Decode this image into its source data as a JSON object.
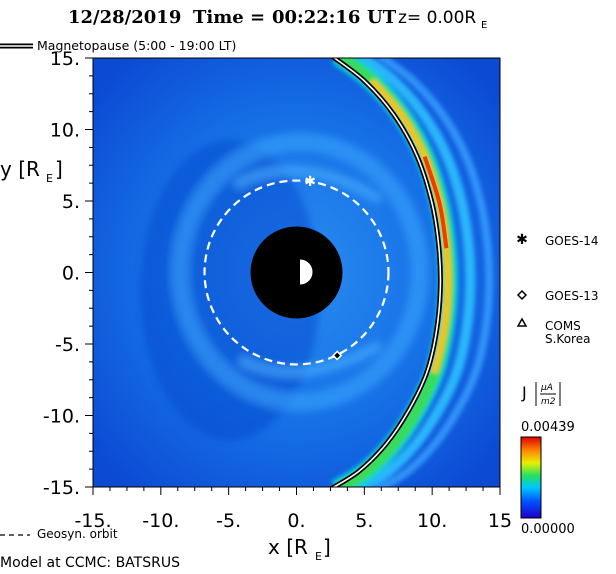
{
  "chart_data": {
    "type": "heatmap",
    "header": {
      "date": "12/28/2019",
      "time_label": "Time =",
      "time_value": "00:22:16",
      "time_unit": "UT",
      "z_label": "z= 0.00R",
      "z_sub": "E"
    },
    "xlabel": "x [R",
    "xlabel_sub": "E",
    "xlabel_close": "]",
    "ylabel": "y [R",
    "ylabel_sub": "E",
    "ylabel_close": "]",
    "xlim": [
      -15,
      15
    ],
    "ylim": [
      -15,
      15
    ],
    "x_ticks": [
      {
        "value": -15,
        "label": "-15."
      },
      {
        "value": -10,
        "label": "-10."
      },
      {
        "value": -5,
        "label": "-5."
      },
      {
        "value": 0,
        "label": "0."
      },
      {
        "value": 5,
        "label": "5."
      },
      {
        "value": 10,
        "label": "10."
      },
      {
        "value": 15,
        "label": "15"
      }
    ],
    "y_ticks": [
      {
        "value": 15,
        "label": "15."
      },
      {
        "value": 10,
        "label": "10."
      },
      {
        "value": 5,
        "label": "5."
      },
      {
        "value": 0,
        "label": "0."
      },
      {
        "value": -5,
        "label": "-5."
      },
      {
        "value": -10,
        "label": "-10."
      },
      {
        "value": -15,
        "label": "-15."
      }
    ],
    "colorbar": {
      "label": "J",
      "unit_num": "μA",
      "unit_den": "m2",
      "max_label": "0.00439",
      "min_label": "0.00000",
      "min": 0.0,
      "max": 0.00439
    },
    "legend_magnetopause": "Magnetopause (5:00 - 19:00 LT)",
    "legend_geosyn": "Geosyn. orbit",
    "geosyn_orbit_radius": 6.6,
    "earth_shadow_radius": 3.3,
    "magnetopause": [
      [
        2.5,
        15.2
      ],
      [
        5.0,
        13.4
      ],
      [
        7.2,
        11.0
      ],
      [
        8.9,
        8.1
      ],
      [
        10.0,
        4.8
      ],
      [
        10.5,
        1.7
      ],
      [
        10.6,
        -1.2
      ],
      [
        10.3,
        -4.2
      ],
      [
        9.6,
        -7.0
      ],
      [
        8.3,
        -9.6
      ],
      [
        6.6,
        -12.0
      ],
      [
        4.6,
        -13.9
      ],
      [
        2.4,
        -15.2
      ]
    ],
    "satellites": [
      {
        "name": "GOES-14",
        "marker": "asterisk",
        "x": 1.0,
        "y": 6.4
      },
      {
        "name": "GOES-13",
        "marker": "diamond",
        "x": 3.0,
        "y": -5.8
      },
      {
        "name": "COMS",
        "name2": "S.Korea",
        "marker": "triangle"
      }
    ],
    "source": "Model at CCMC: BATSRUS",
    "colors": {
      "background": "#1464e6",
      "dark_field": "#0a3cc8",
      "earth": "#000000",
      "orbit": "#ffffff",
      "magnetopause_outline": "#000000",
      "magnetopause_fill": "#ffffff"
    }
  }
}
